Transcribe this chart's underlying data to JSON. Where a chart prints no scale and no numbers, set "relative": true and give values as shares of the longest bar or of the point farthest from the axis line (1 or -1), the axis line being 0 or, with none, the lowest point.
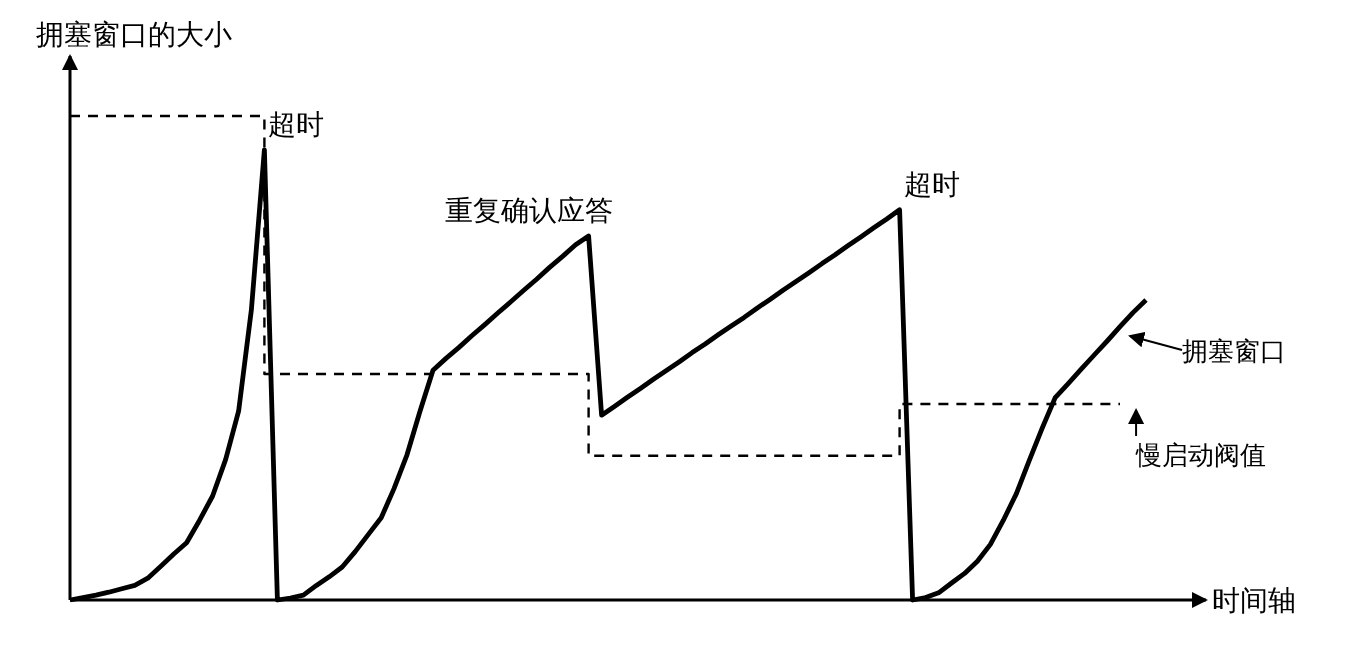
{
  "chart_data": {
    "type": "line",
    "relative": true,
    "ylabel": "拥塞窗口的大小",
    "xlabel": "时间轴",
    "categories": [
      null,
      null,
      null,
      null,
      null,
      null,
      null,
      null,
      null,
      null,
      null,
      null,
      null,
      null,
      null,
      null,
      null,
      null,
      null,
      null,
      null,
      null,
      null,
      null,
      null,
      null,
      null,
      null,
      null,
      null,
      null,
      null,
      null,
      null,
      null,
      null,
      null,
      null,
      null,
      null,
      null,
      null,
      null,
      null,
      null,
      null,
      null,
      null,
      null,
      null,
      null,
      null,
      null,
      null,
      null,
      null,
      null,
      null,
      null,
      null,
      null,
      null,
      null,
      null,
      null,
      null,
      null,
      null,
      null,
      null,
      null,
      null,
      null,
      null,
      null,
      null,
      null,
      null,
      null,
      null,
      null,
      null,
      null,
      null
    ],
    "series": [
      {
        "name": "拥塞窗口",
        "color": "#000000",
        "line_style": "solid",
        "values": [
          0,
          0.005,
          0.01,
          0.016,
          0.023,
          0.03,
          0.045,
          0.07,
          0.095,
          0.118,
          0.165,
          0.215,
          0.29,
          0.39,
          0.6,
          0.93,
          0,
          0.004,
          0.01,
          0.03,
          0.048,
          0.068,
          0.1,
          0.135,
          0.17,
          0.23,
          0.3,
          0.39,
          0.475,
          0.499,
          0.522,
          0.546,
          0.569,
          0.593,
          0.616,
          0.64,
          0.663,
          0.687,
          0.71,
          0.734,
          0.752,
          0.382,
          0.4,
          0.419,
          0.437,
          0.456,
          0.474,
          0.492,
          0.511,
          0.529,
          0.548,
          0.566,
          0.584,
          0.603,
          0.621,
          0.64,
          0.658,
          0.676,
          0.695,
          0.713,
          0.732,
          0.75,
          0.769,
          0.787,
          0.806,
          0,
          0.005,
          0.015,
          0.035,
          0.055,
          0.08,
          0.115,
          0.165,
          0.22,
          0.289,
          0.355,
          0.418,
          0.447,
          0.477,
          0.506,
          0.535,
          0.565,
          0.594,
          0.62
        ]
      },
      {
        "name": "慢启动阀值",
        "type": "step",
        "color": "#000000",
        "line_style": "dashed",
        "values": [
          1,
          1,
          1,
          1,
          1,
          1,
          1,
          1,
          1,
          1,
          1,
          1,
          1,
          1,
          1,
          0.467,
          0.467,
          0.467,
          0.467,
          0.467,
          0.467,
          0.467,
          0.467,
          0.467,
          0.467,
          0.467,
          0.467,
          0.467,
          0.467,
          0.467,
          0.467,
          0.467,
          0.467,
          0.467,
          0.467,
          0.467,
          0.467,
          0.467,
          0.467,
          0.467,
          0.298,
          0.298,
          0.298,
          0.298,
          0.298,
          0.298,
          0.298,
          0.298,
          0.298,
          0.298,
          0.298,
          0.298,
          0.298,
          0.298,
          0.298,
          0.298,
          0.298,
          0.298,
          0.298,
          0.298,
          0.298,
          0.298,
          0.298,
          0.298,
          0.405,
          0.405,
          0.405,
          0.405,
          0.405,
          0.405,
          0.405,
          0.405,
          0.405,
          0.405,
          0.405,
          0.405,
          0.405,
          0.405,
          0.405,
          0.405,
          0.405,
          0.405,
          null,
          null
        ]
      }
    ],
    "annotations": [
      "超时",
      "重复确认应答",
      "超时"
    ]
  }
}
